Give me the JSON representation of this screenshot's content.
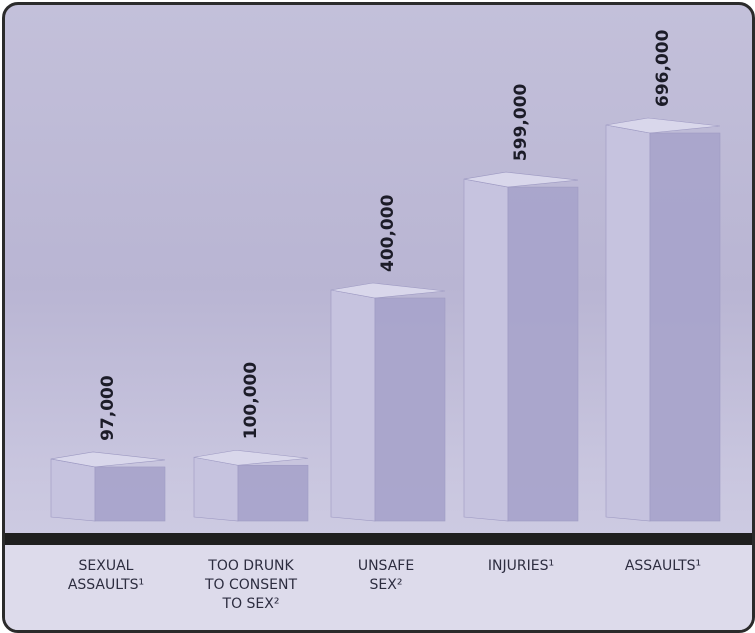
{
  "chart_data": {
    "type": "bar3d",
    "categories": [
      "SEXUAL ASSAULTS¹",
      "TOO DRUNK TO CONSENT TO SEX²",
      "UNSAFE SEX²",
      "INJURIES¹",
      "ASSAULTS¹"
    ],
    "values": [
      97000,
      100000,
      400000,
      599000,
      696000
    ],
    "value_labels": [
      "97,000",
      "100,000",
      "400,000",
      "599,000",
      "696,000"
    ],
    "color": "#a9a5cc"
  }
}
